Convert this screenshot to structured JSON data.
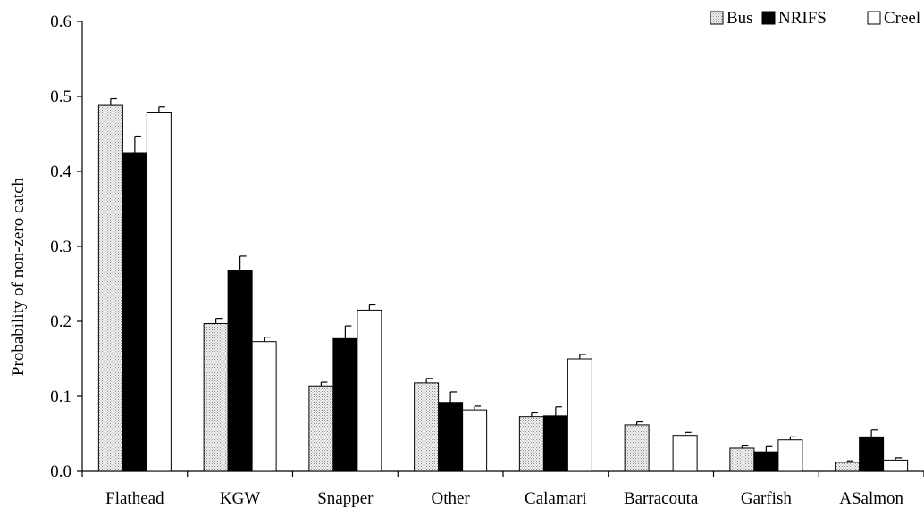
{
  "chart_data": {
    "type": "bar",
    "title": "",
    "xlabel": "",
    "ylabel": "Probability of non-zero catch",
    "ylim": [
      0,
      0.6
    ],
    "yticks": [
      "0.0",
      "0.1",
      "0.2",
      "0.3",
      "0.4",
      "0.5",
      "0.6"
    ],
    "grid": false,
    "legend_position": "top-right",
    "categories": [
      "Flathead",
      "KGW",
      "Snapper",
      "Other",
      "Calamari",
      "Barracouta",
      "Garfish",
      "ASalmon"
    ],
    "series": [
      {
        "name": "Bus",
        "fill": "dotted-grey",
        "values": [
          0.488,
          0.197,
          0.114,
          0.118,
          0.073,
          0.062,
          0.031,
          0.012
        ],
        "errors": [
          0.009,
          0.007,
          0.005,
          0.006,
          0.005,
          0.004,
          0.003,
          0.002
        ]
      },
      {
        "name": "NRIFS",
        "fill": "#000000",
        "values": [
          0.425,
          0.268,
          0.177,
          0.092,
          0.074,
          null,
          0.026,
          0.046
        ],
        "errors": [
          0.022,
          0.019,
          0.017,
          0.014,
          0.012,
          null,
          0.007,
          0.009
        ]
      },
      {
        "name": "Creel",
        "fill": "#ffffff",
        "values": [
          0.478,
          0.173,
          0.215,
          0.082,
          0.15,
          0.048,
          0.042,
          0.015
        ],
        "errors": [
          0.008,
          0.006,
          0.007,
          0.005,
          0.006,
          0.004,
          0.004,
          0.003
        ]
      }
    ]
  }
}
